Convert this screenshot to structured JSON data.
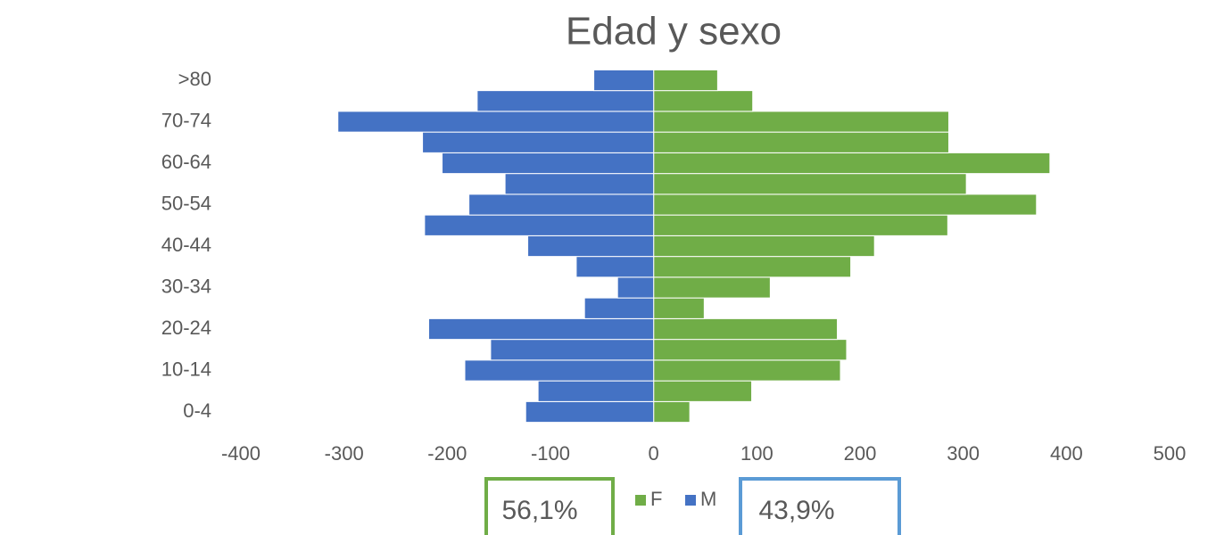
{
  "chart_data": {
    "type": "bar",
    "orientation": "horizontal",
    "title": "Edad y sexo",
    "categories": [
      "0-4",
      null,
      "10-14",
      null,
      "20-24",
      null,
      "30-34",
      null,
      "40-44",
      null,
      "50-54",
      null,
      "60-64",
      null,
      "70-74",
      null,
      ">80"
    ],
    "series": [
      {
        "name": "F",
        "color": "#70ad47",
        "values": [
          35,
          95,
          181,
          187,
          178,
          49,
          113,
          191,
          214,
          285,
          371,
          303,
          384,
          286,
          286,
          96,
          62
        ]
      },
      {
        "name": "M",
        "color": "#4472c4",
        "values": [
          -124,
          -112,
          -183,
          -158,
          -218,
          -67,
          -35,
          -75,
          -122,
          -222,
          -179,
          -144,
          -205,
          -224,
          -306,
          -171,
          -58
        ]
      }
    ],
    "xlim": [
      -400,
      500
    ],
    "xticks": [
      -400,
      -300,
      -200,
      -100,
      0,
      100,
      200,
      300,
      400,
      500
    ],
    "legend": "bottom",
    "annotations": [
      "56,1%",
      "43,9%"
    ]
  }
}
